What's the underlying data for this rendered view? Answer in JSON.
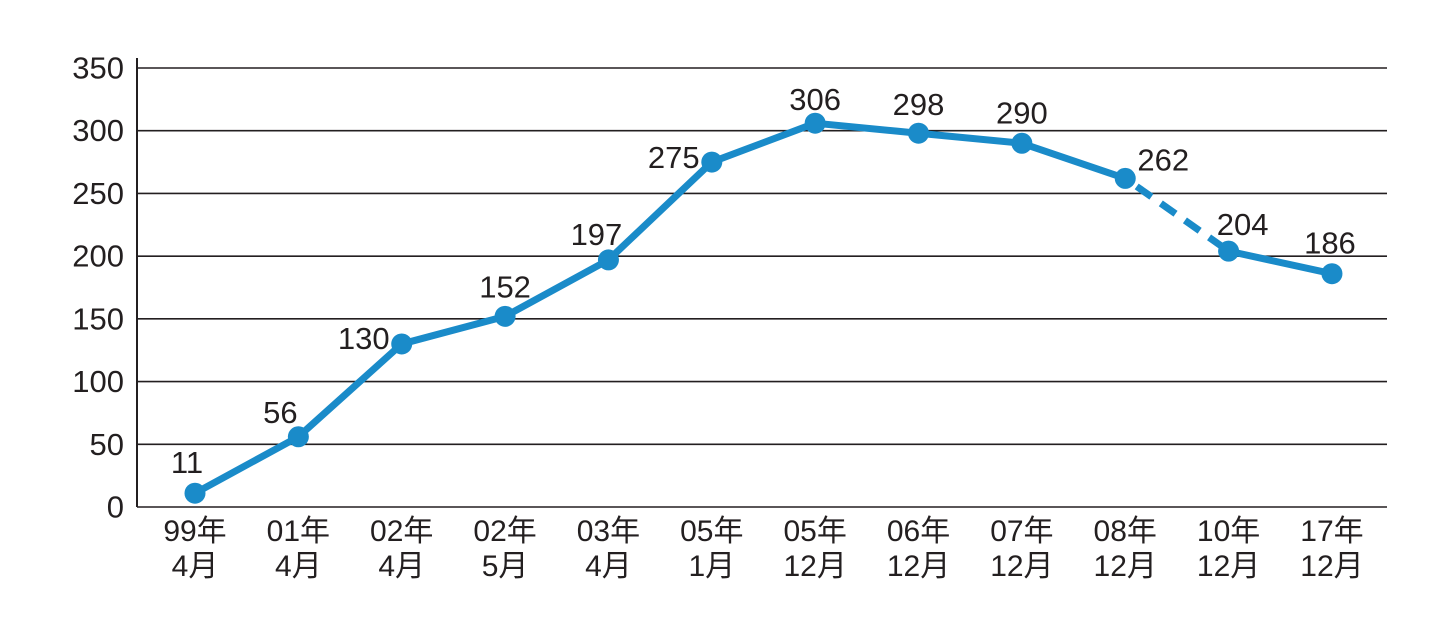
{
  "chart_data": {
    "type": "line",
    "title": "",
    "xlabel": "",
    "ylabel": "",
    "categories": [
      {
        "line1": "99年",
        "line2": "4月"
      },
      {
        "line1": "01年",
        "line2": "4月"
      },
      {
        "line1": "02年",
        "line2": "4月"
      },
      {
        "line1": "02年",
        "line2": "5月"
      },
      {
        "line1": "03年",
        "line2": "4月"
      },
      {
        "line1": "05年",
        "line2": "1月"
      },
      {
        "line1": "05年",
        "line2": "12月"
      },
      {
        "line1": "06年",
        "line2": "12月"
      },
      {
        "line1": "07年",
        "line2": "12月"
      },
      {
        "line1": "08年",
        "line2": "12月"
      },
      {
        "line1": "10年",
        "line2": "12月"
      },
      {
        "line1": "17年",
        "line2": "12月"
      }
    ],
    "series": [
      {
        "name": "values",
        "values": [
          11,
          56,
          130,
          152,
          197,
          275,
          306,
          298,
          290,
          262,
          204,
          186
        ]
      }
    ],
    "point_labels": [
      "11",
      "56",
      "130",
      "152",
      "197",
      "275",
      "306",
      "298",
      "290",
      "262",
      "204",
      "186"
    ],
    "yticks": [
      0,
      50,
      100,
      150,
      200,
      250,
      300,
      350
    ],
    "ylim": [
      0,
      350
    ],
    "grid": true,
    "legend_position": "none",
    "dashed_segments": [
      [
        9,
        10
      ]
    ],
    "colors": {
      "line": "#1a8bc9",
      "marker": "#1a8bc9",
      "axis": "#231f20",
      "text": "#231f20",
      "background": "#ffffff"
    }
  }
}
